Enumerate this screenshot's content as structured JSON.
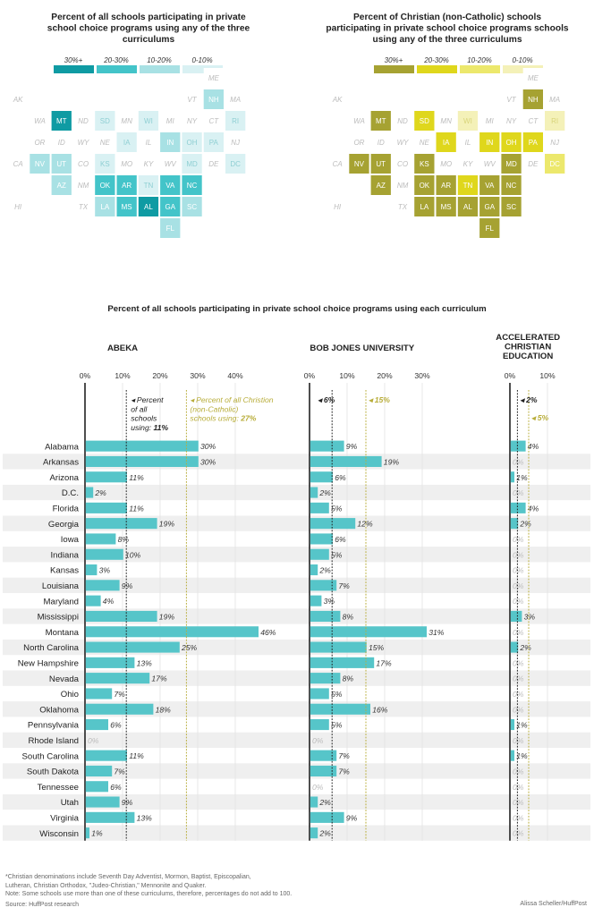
{
  "colors": {
    "teal": [
      "#0f9ba3",
      "#43c4c9",
      "#a8e1e4",
      "#d9f1f3"
    ],
    "olive": [
      "#a6a232",
      "#dfd71c",
      "#ece86c",
      "#f4f1b8"
    ],
    "empty": "#f0f0f0",
    "bar": "#56c5c9",
    "stripe": "#efefef",
    "axis": "#222222",
    "gold": "#b8ad3a"
  },
  "maps": [
    {
      "title": "Percent of all schools participating in private school choice programs using any of the three curriculums",
      "palette": "teal",
      "legend": [
        "30%+",
        "20-30%",
        "10-20%",
        "0-10%"
      ]
    },
    {
      "title": "Percent of Christian (non-Catholic) schools participating in private school choice programs schools using any of the three curriculums",
      "palette": "olive",
      "legend": [
        "30%+",
        "20-30%",
        "10-20%",
        "0-10%"
      ]
    }
  ],
  "tiles": [
    {
      "s": "ME",
      "c": 9,
      "r": 0,
      "a": -1,
      "b": -1
    },
    {
      "s": "AK",
      "c": 0,
      "r": 1,
      "a": -1,
      "b": -1
    },
    {
      "s": "VT",
      "c": 8,
      "r": 1,
      "a": -1,
      "b": -1
    },
    {
      "s": "NH",
      "c": 9,
      "r": 1,
      "a": 2,
      "b": 0
    },
    {
      "s": "MA",
      "c": 10,
      "r": 1,
      "a": -1,
      "b": -1
    },
    {
      "s": "WA",
      "c": 1,
      "r": 2,
      "a": -1,
      "b": -1
    },
    {
      "s": "MT",
      "c": 2,
      "r": 2,
      "a": 0,
      "b": 0
    },
    {
      "s": "ND",
      "c": 3,
      "r": 2,
      "a": -1,
      "b": -1
    },
    {
      "s": "SD",
      "c": 4,
      "r": 2,
      "a": 3,
      "b": 1
    },
    {
      "s": "MN",
      "c": 5,
      "r": 2,
      "a": -1,
      "b": -1
    },
    {
      "s": "WI",
      "c": 6,
      "r": 2,
      "a": 3,
      "b": 3
    },
    {
      "s": "MI",
      "c": 7,
      "r": 2,
      "a": -1,
      "b": -1
    },
    {
      "s": "NY",
      "c": 8,
      "r": 2,
      "a": -1,
      "b": -1
    },
    {
      "s": "CT",
      "c": 9,
      "r": 2,
      "a": -1,
      "b": -1
    },
    {
      "s": "RI",
      "c": 10,
      "r": 2,
      "a": 3,
      "b": 3
    },
    {
      "s": "OR",
      "c": 1,
      "r": 3,
      "a": -1,
      "b": -1
    },
    {
      "s": "ID",
      "c": 2,
      "r": 3,
      "a": -1,
      "b": -1
    },
    {
      "s": "WY",
      "c": 3,
      "r": 3,
      "a": -1,
      "b": -1
    },
    {
      "s": "NE",
      "c": 4,
      "r": 3,
      "a": -1,
      "b": -1
    },
    {
      "s": "IA",
      "c": 5,
      "r": 3,
      "a": 3,
      "b": 1
    },
    {
      "s": "IL",
      "c": 6,
      "r": 3,
      "a": -1,
      "b": -1
    },
    {
      "s": "IN",
      "c": 7,
      "r": 3,
      "a": 2,
      "b": 1
    },
    {
      "s": "OH",
      "c": 8,
      "r": 3,
      "a": 3,
      "b": 1
    },
    {
      "s": "PA",
      "c": 9,
      "r": 3,
      "a": 3,
      "b": 1
    },
    {
      "s": "NJ",
      "c": 10,
      "r": 3,
      "a": -1,
      "b": -1
    },
    {
      "s": "CA",
      "c": 0,
      "r": 4,
      "a": -1,
      "b": -1
    },
    {
      "s": "NV",
      "c": 1,
      "r": 4,
      "a": 2,
      "b": 0
    },
    {
      "s": "UT",
      "c": 2,
      "r": 4,
      "a": 2,
      "b": 0
    },
    {
      "s": "CO",
      "c": 3,
      "r": 4,
      "a": -1,
      "b": -1
    },
    {
      "s": "KS",
      "c": 4,
      "r": 4,
      "a": 3,
      "b": 0
    },
    {
      "s": "MO",
      "c": 5,
      "r": 4,
      "a": -1,
      "b": -1
    },
    {
      "s": "KY",
      "c": 6,
      "r": 4,
      "a": -1,
      "b": -1
    },
    {
      "s": "WV",
      "c": 7,
      "r": 4,
      "a": -1,
      "b": -1
    },
    {
      "s": "MD",
      "c": 8,
      "r": 4,
      "a": 3,
      "b": 0
    },
    {
      "s": "DE",
      "c": 9,
      "r": 4,
      "a": -1,
      "b": -1
    },
    {
      "s": "DC",
      "c": 10,
      "r": 4,
      "a": 3,
      "b": 2
    },
    {
      "s": "AZ",
      "c": 2,
      "r": 5,
      "a": 2,
      "b": 0
    },
    {
      "s": "NM",
      "c": 3,
      "r": 5,
      "a": -1,
      "b": -1
    },
    {
      "s": "OK",
      "c": 4,
      "r": 5,
      "a": 1,
      "b": 0
    },
    {
      "s": "AR",
      "c": 5,
      "r": 5,
      "a": 1,
      "b": 0
    },
    {
      "s": "TN",
      "c": 6,
      "r": 5,
      "a": 3,
      "b": 1
    },
    {
      "s": "VA",
      "c": 7,
      "r": 5,
      "a": 1,
      "b": 0
    },
    {
      "s": "NC",
      "c": 8,
      "r": 5,
      "a": 1,
      "b": 0
    },
    {
      "s": "HI",
      "c": 0,
      "r": 6,
      "a": -1,
      "b": -1
    },
    {
      "s": "TX",
      "c": 3,
      "r": 6,
      "a": -1,
      "b": -1
    },
    {
      "s": "LA",
      "c": 4,
      "r": 6,
      "a": 2,
      "b": 0
    },
    {
      "s": "MS",
      "c": 5,
      "r": 6,
      "a": 1,
      "b": 0
    },
    {
      "s": "AL",
      "c": 6,
      "r": 6,
      "a": 0,
      "b": 0
    },
    {
      "s": "GA",
      "c": 7,
      "r": 6,
      "a": 1,
      "b": 0
    },
    {
      "s": "SC",
      "c": 8,
      "r": 6,
      "a": 2,
      "b": 0
    },
    {
      "s": "FL",
      "c": 7,
      "r": 7,
      "a": 2,
      "b": 0
    }
  ],
  "chart_data": {
    "type": "bar",
    "title": "Percent of all schools participating in private school choice programs using each curriculum",
    "categories": [
      "Alabama",
      "Arkansas",
      "Arizona",
      "D.C.",
      "Florida",
      "Georgia",
      "Iowa",
      "Indiana",
      "Kansas",
      "Louisiana",
      "Maryland",
      "Mississippi",
      "Montana",
      "North Carolina",
      "New Hampshire",
      "Nevada",
      "Ohio",
      "Oklahoma",
      "Pennsylvania",
      "Rhode Island",
      "South Carolina",
      "South Dakota",
      "Tennessee",
      "Utah",
      "Virginia",
      "Wisconsin"
    ],
    "series": [
      {
        "name": "ABEKA",
        "values": [
          30,
          30,
          11,
          2,
          11,
          19,
          8,
          10,
          3,
          9,
          4,
          19,
          46,
          25,
          13,
          17,
          7,
          18,
          6,
          0,
          11,
          7,
          6,
          9,
          13,
          1
        ],
        "ticks": [
          0,
          10,
          20,
          30,
          40
        ],
        "xlim": [
          0,
          46
        ],
        "ref_all": 11,
        "ref_christian": 27,
        "ref_all_label": [
          "Percent",
          "of all",
          "schools",
          "using: 11%"
        ],
        "ref_christian_label": [
          "Percent of all Christion",
          "(non-Catholic)",
          "schools using: 27%"
        ]
      },
      {
        "name": "BOB JONES UNIVERSITY",
        "values": [
          9,
          19,
          6,
          2,
          5,
          12,
          6,
          5,
          2,
          7,
          3,
          8,
          31,
          15,
          17,
          8,
          5,
          16,
          5,
          0,
          7,
          7,
          0,
          2,
          9,
          2
        ],
        "ticks": [
          0,
          10,
          20,
          30
        ],
        "xlim": [
          0,
          31
        ],
        "ref_all": 6,
        "ref_christian": 15,
        "ref_all_label": [
          "6%"
        ],
        "ref_christian_label": [
          "15%"
        ]
      },
      {
        "name": "ACCELERATED CHRISTIAN EDUCATION",
        "name_lines": [
          "ACCELERATED",
          "CHRISTIAN",
          "EDUCATION"
        ],
        "values": [
          4,
          0,
          1,
          0,
          4,
          2,
          0,
          0,
          0,
          0,
          0,
          3,
          0,
          2,
          0,
          0,
          0,
          0,
          1,
          0,
          1,
          0,
          0,
          0,
          0,
          0
        ],
        "ticks": [
          0,
          10
        ],
        "xlim": [
          0,
          10
        ],
        "ref_all": 2,
        "ref_christian": 5,
        "ref_all_label": [
          "2%"
        ],
        "ref_christian_label": [
          "5%"
        ]
      }
    ]
  },
  "footnotes": [
    "*Christian denominations include Seventh Day Adventist, Mormon, Baptist, Episcopalian,",
    "Lutheran, Christian Orthodox, \"Judeo-Christian,\" Mennonite and Quaker.",
    "Note: Some schools use more than one of these curriculums, therefore, percentages do not add to 100.",
    "Source: HuffPost research"
  ],
  "credit": "Alissa Scheller/HuffPost"
}
